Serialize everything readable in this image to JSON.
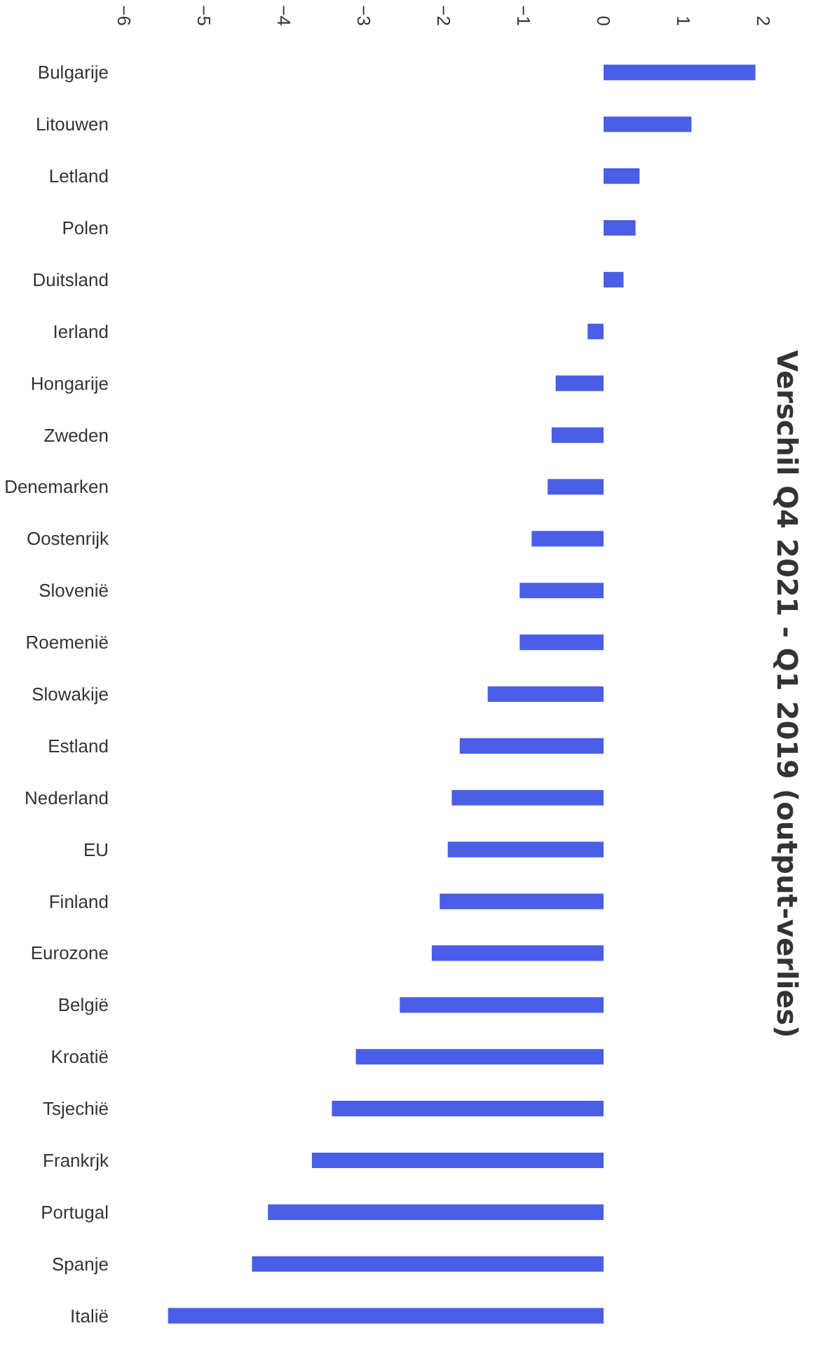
{
  "chart_data": {
    "type": "bar",
    "orientation": "horizontal",
    "title": "Verschil Q4 2021 - Q1 2019 (output-verlies)",
    "categories": [
      "Bulgarije",
      "Litouwen",
      "Letland",
      "Polen",
      "Duitsland",
      "Ierland",
      "Hongarije",
      "Zweden",
      "Denemarken",
      "Oostenrijk",
      "Slovenië",
      "Roemenië",
      "Slowakije",
      "Estland",
      "Nederland",
      "EU",
      "Finland",
      "Eurozone",
      "België",
      "Kroatië",
      "Tsjechië",
      "Frankrjk",
      "Portugal",
      "Spanje",
      "Italië"
    ],
    "values": [
      1.9,
      1.1,
      0.45,
      0.4,
      0.25,
      -0.2,
      -0.6,
      -0.65,
      -0.7,
      -0.9,
      -1.05,
      -1.05,
      -1.45,
      -1.8,
      -1.9,
      -1.95,
      -2.05,
      -2.15,
      -2.55,
      -3.1,
      -3.4,
      -3.65,
      -4.2,
      -4.4,
      -5.45
    ],
    "color": "#4a5ee8",
    "xlim": [
      -6,
      2
    ],
    "xticks": [
      -6,
      -5,
      -4,
      -3,
      -2,
      -1,
      0,
      1,
      2
    ],
    "grid": false
  }
}
